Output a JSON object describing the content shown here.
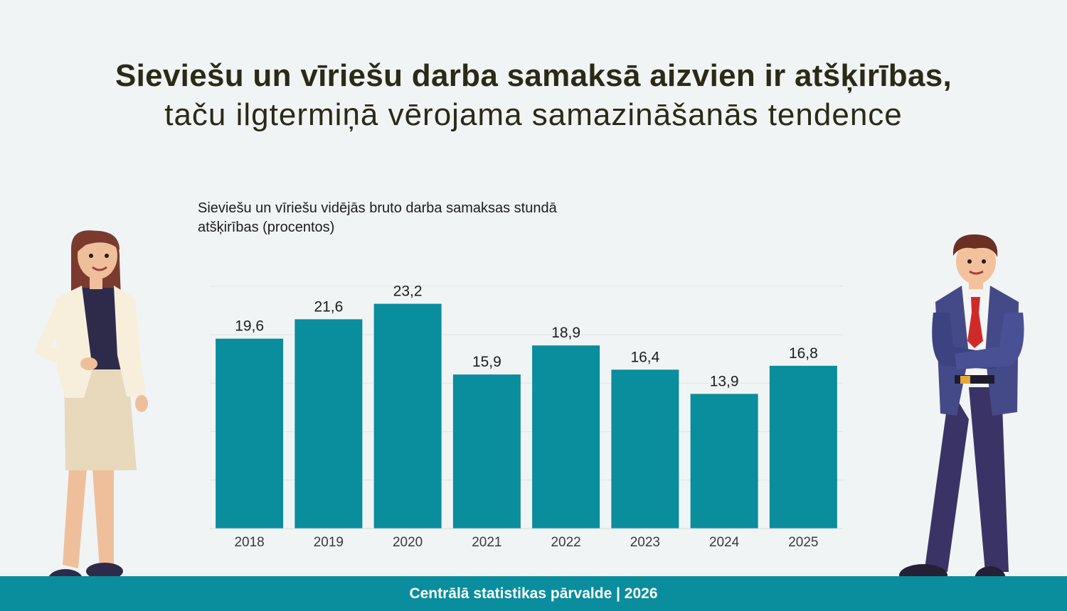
{
  "title": {
    "line1": "Sieviešu un vīriešu darba samaksā aizvien ir atšķirības,",
    "line2": "taču ilgtermiņā vērojama samazināšanās tendence"
  },
  "chart_data": {
    "type": "bar",
    "title": "Sieviešu un vīriešu vidējās bruto darba samaksas stundā atšķirības (procentos)",
    "categories": [
      "2018",
      "2019",
      "2020",
      "2021",
      "2022",
      "2023",
      "2024",
      "2025"
    ],
    "values": [
      19.6,
      21.6,
      23.2,
      15.9,
      18.9,
      16.4,
      13.9,
      16.8
    ],
    "value_labels": [
      "19,6",
      "21,6",
      "23,2",
      "15,9",
      "18,9",
      "16,4",
      "13,9",
      "16,8"
    ],
    "xlabel": "",
    "ylabel": "",
    "ylim": [
      0,
      25
    ],
    "grid": true,
    "bar_color": "#0a8d9c"
  },
  "footer": {
    "text": "Centrālā statistikas pārvalde | 2026"
  },
  "illustrations": {
    "left": "woman-icon",
    "right": "man-icon"
  }
}
